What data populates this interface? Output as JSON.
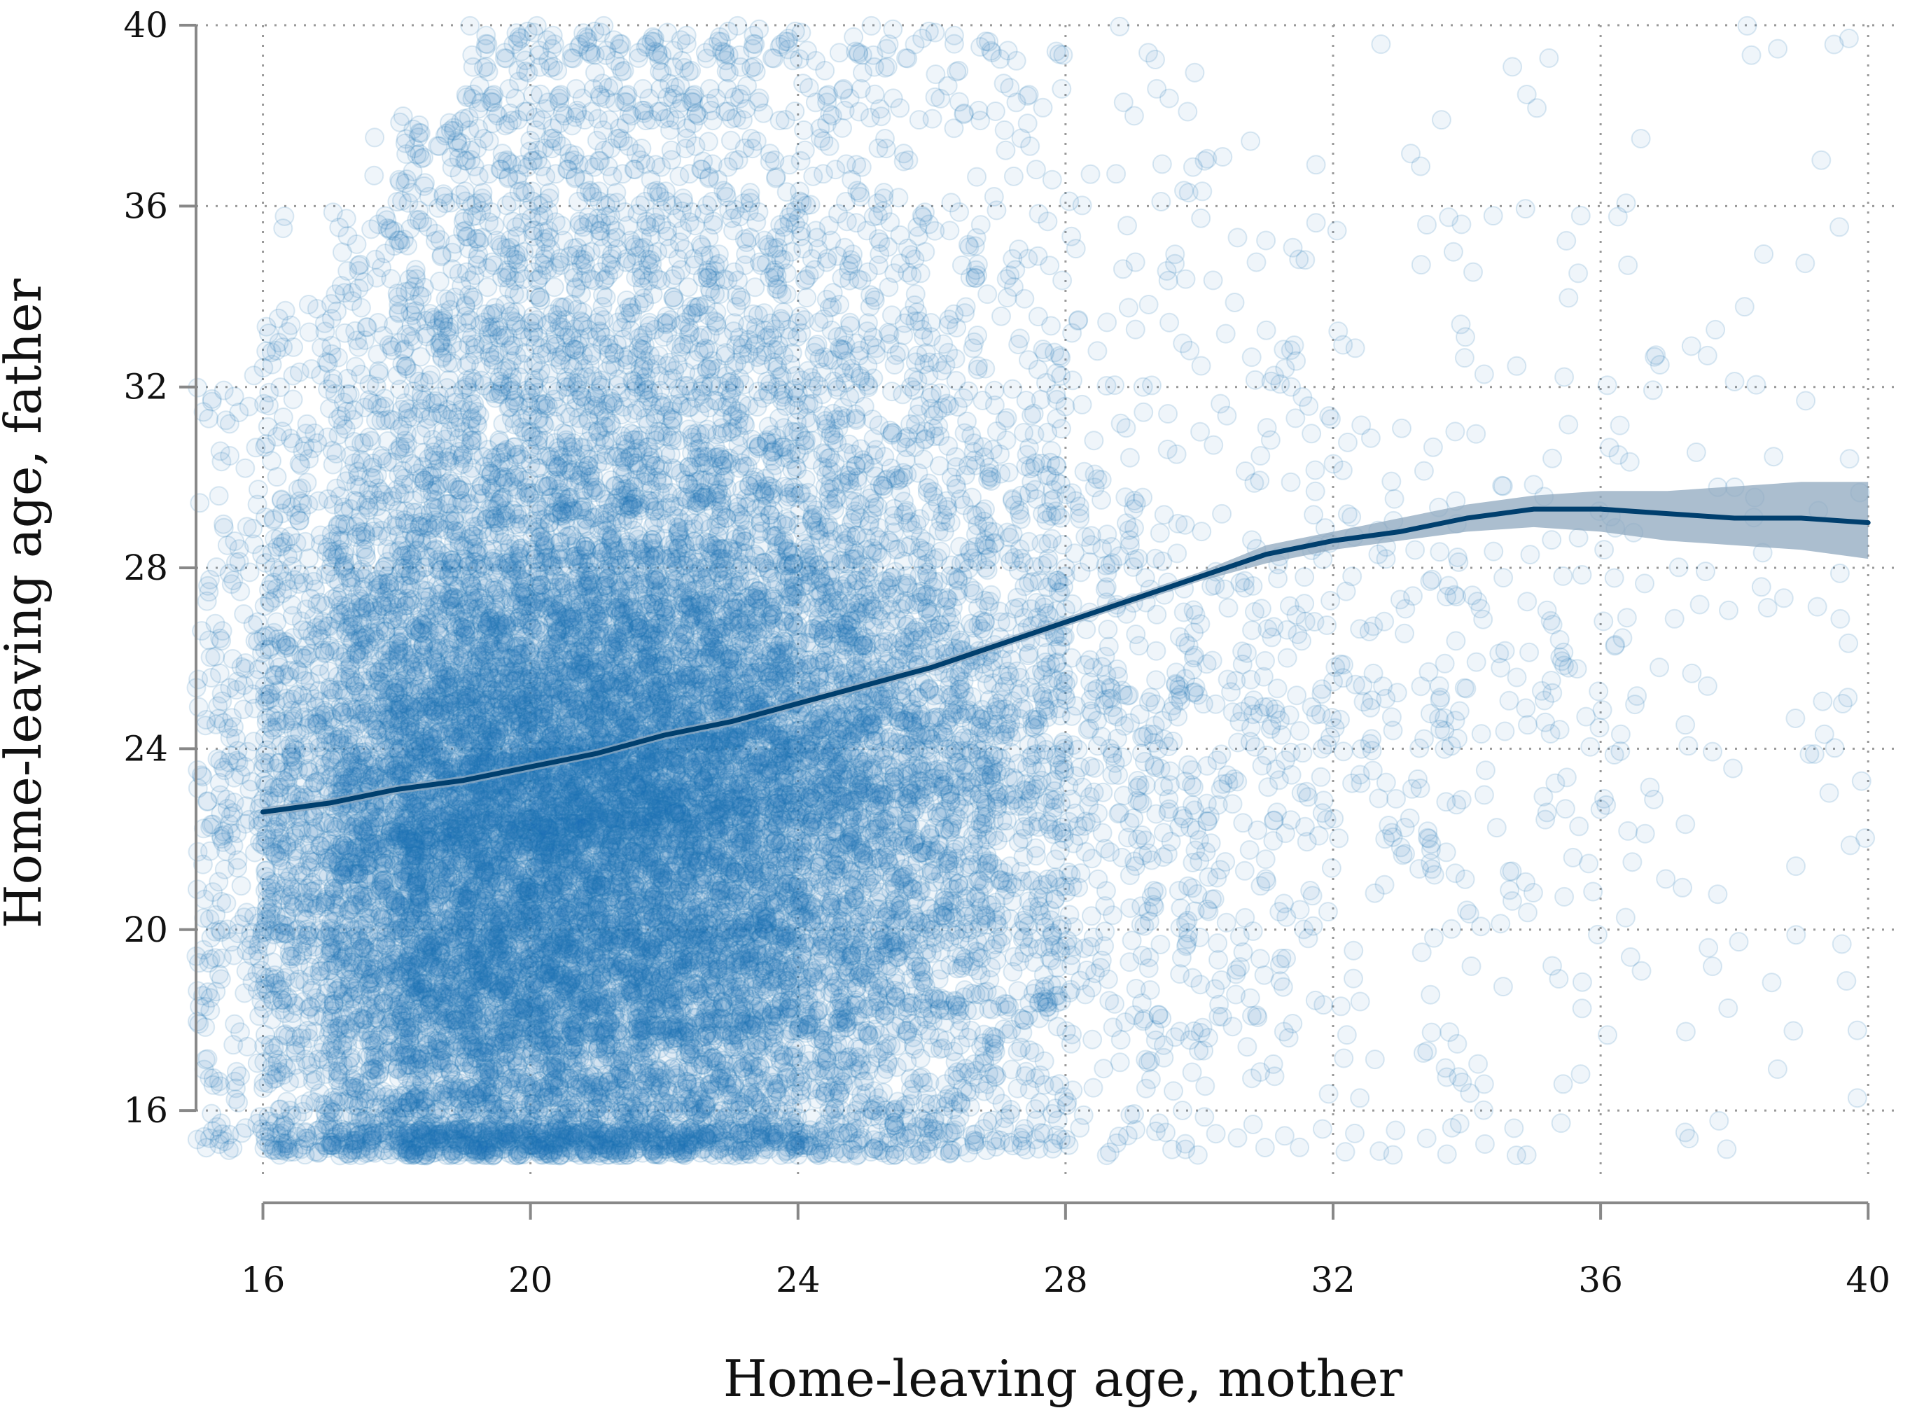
{
  "chart_data": {
    "type": "scatter",
    "title": "",
    "xlabel": "Home-leaving age, mother",
    "ylabel": "Home-leaving age, father",
    "xlim": [
      15,
      40.5
    ],
    "ylim": [
      14.5,
      40
    ],
    "x_ticks": [
      16,
      20,
      24,
      28,
      32,
      36,
      40
    ],
    "y_ticks": [
      16,
      20,
      24,
      28,
      32,
      36,
      40
    ],
    "x_tick_labels": [
      "16",
      "20",
      "24",
      "28",
      "32",
      "36",
      "40"
    ],
    "y_tick_labels": [
      "16",
      "20",
      "24",
      "28",
      "32",
      "36",
      "40"
    ],
    "grid": "dotted",
    "legend": "none",
    "colors": {
      "points": "#1f77b4",
      "fit_line": "#003f6e",
      "ci_band": "#8fa8bf",
      "grid": "#999999",
      "axis": "#888888"
    },
    "scatter_density": [
      {
        "x_range": [
          15,
          16
        ],
        "y_range": [
          15,
          32
        ],
        "count": 250
      },
      {
        "x_range": [
          16,
          17
        ],
        "y_range": [
          15,
          34
        ],
        "count": 700
      },
      {
        "x_range": [
          17,
          18
        ],
        "y_range": [
          15,
          36
        ],
        "count": 1300
      },
      {
        "x_range": [
          18,
          19
        ],
        "y_range": [
          15,
          38
        ],
        "count": 2000
      },
      {
        "x_range": [
          19,
          20
        ],
        "y_range": [
          15,
          40
        ],
        "count": 2300
      },
      {
        "x_range": [
          20,
          21
        ],
        "y_range": [
          15,
          40
        ],
        "count": 2400
      },
      {
        "x_range": [
          21,
          22
        ],
        "y_range": [
          15,
          40
        ],
        "count": 2300
      },
      {
        "x_range": [
          22,
          23
        ],
        "y_range": [
          15,
          40
        ],
        "count": 2000
      },
      {
        "x_range": [
          23,
          24
        ],
        "y_range": [
          15,
          40
        ],
        "count": 1700
      },
      {
        "x_range": [
          24,
          25
        ],
        "y_range": [
          15,
          40
        ],
        "count": 1300
      },
      {
        "x_range": [
          25,
          26
        ],
        "y_range": [
          15,
          40
        ],
        "count": 950
      },
      {
        "x_range": [
          26,
          27
        ],
        "y_range": [
          15,
          40
        ],
        "count": 700
      },
      {
        "x_range": [
          27,
          28
        ],
        "y_range": [
          15,
          40
        ],
        "count": 480
      },
      {
        "x_range": [
          28,
          30
        ],
        "y_range": [
          15,
          40
        ],
        "count": 420
      },
      {
        "x_range": [
          30,
          32
        ],
        "y_range": [
          15,
          40
        ],
        "count": 260
      },
      {
        "x_range": [
          32,
          34
        ],
        "y_range": [
          15,
          40
        ],
        "count": 170
      },
      {
        "x_range": [
          34,
          36
        ],
        "y_range": [
          15,
          40
        ],
        "count": 110
      },
      {
        "x_range": [
          36,
          38
        ],
        "y_range": [
          15,
          40
        ],
        "count": 70
      },
      {
        "x_range": [
          38,
          40
        ],
        "y_range": [
          15,
          40
        ],
        "count": 50
      }
    ],
    "series": [
      {
        "type": "line",
        "x": [
          16,
          17,
          18,
          19,
          20,
          21,
          22,
          23,
          24,
          25,
          26,
          27,
          28,
          29,
          30,
          31,
          32,
          33,
          34,
          35,
          36,
          37,
          38,
          39,
          40
        ],
        "y": [
          22.6,
          22.8,
          23.1,
          23.3,
          23.6,
          23.9,
          24.3,
          24.6,
          25.0,
          25.4,
          25.8,
          26.3,
          26.8,
          27.3,
          27.8,
          28.3,
          28.6,
          28.8,
          29.1,
          29.3,
          29.3,
          29.2,
          29.1,
          29.1,
          29.0
        ],
        "ci_low": [
          22.5,
          22.7,
          23.0,
          23.2,
          23.5,
          23.8,
          24.2,
          24.5,
          24.9,
          25.3,
          25.7,
          26.2,
          26.7,
          27.2,
          27.7,
          28.1,
          28.4,
          28.6,
          28.8,
          28.9,
          28.8,
          28.6,
          28.5,
          28.4,
          28.2
        ],
        "ci_high": [
          22.7,
          22.9,
          23.2,
          23.4,
          23.7,
          24.0,
          24.4,
          24.7,
          25.1,
          25.5,
          25.9,
          26.4,
          26.9,
          27.4,
          27.9,
          28.5,
          28.8,
          29.1,
          29.4,
          29.6,
          29.7,
          29.7,
          29.8,
          29.9,
          29.9
        ]
      }
    ]
  }
}
